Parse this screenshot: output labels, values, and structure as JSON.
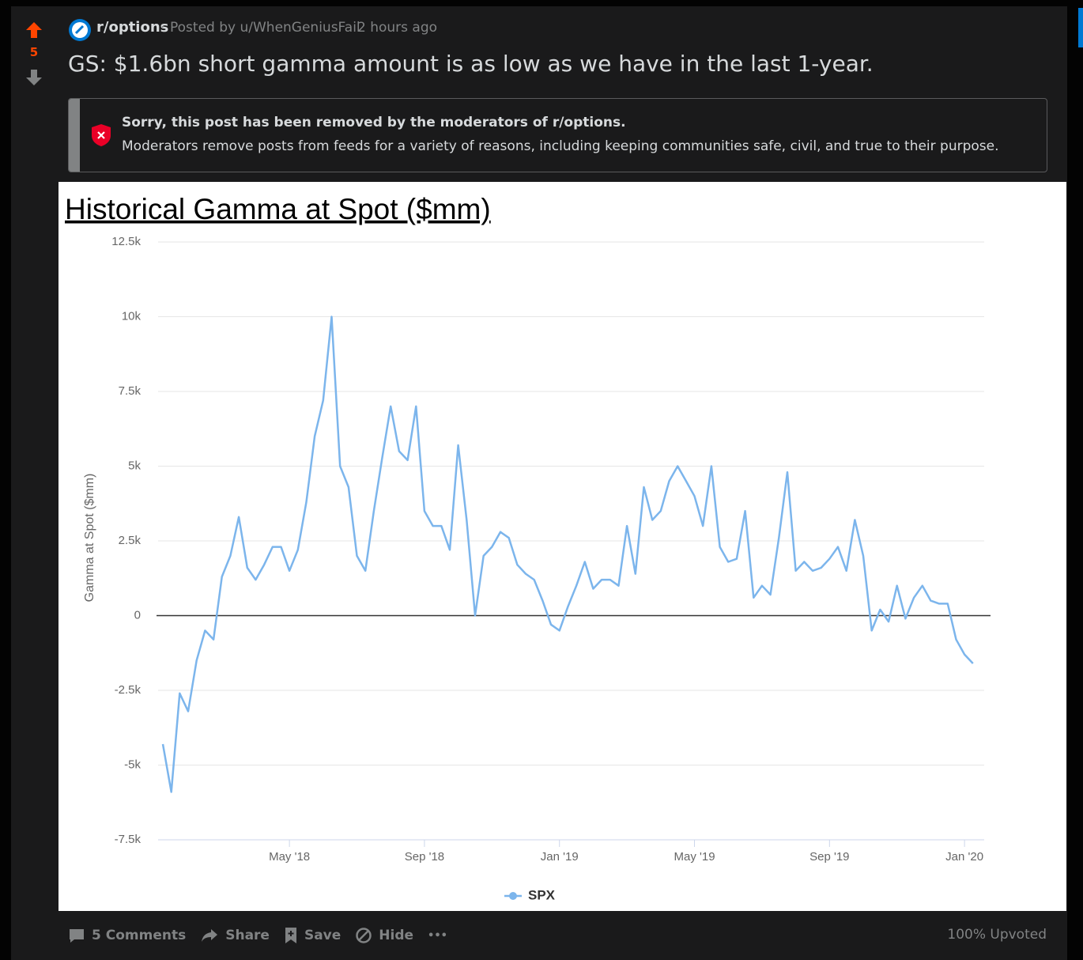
{
  "post": {
    "votes": "5",
    "subreddit": "r/options",
    "separator": "·",
    "posted_by": "Posted by u/WhenGeniusFail",
    "time": "2 hours ago",
    "title": "GS: $1.6bn short gamma amount is as low as we have in the last 1-year.",
    "removal_title": "Sorry, this post has been removed by the moderators of r/options.",
    "removal_text": "Moderators remove posts from feeds for a variety of reasons, including keeping communities safe, civil, and true to their purpose.",
    "actions": [
      "5 Comments",
      "Share",
      "Save",
      "Hide"
    ],
    "more": "•••",
    "upvoted": "100% Upvoted"
  },
  "chart_data": {
    "type": "line",
    "title": "Historical Gamma at Spot ($mm)",
    "y_label": "Gamma at Spot ($mm)",
    "categories": [
      null,
      null,
      null,
      null,
      null,
      null,
      null,
      null,
      null,
      null,
      null,
      null,
      null,
      null,
      null,
      "May '18",
      null,
      null,
      null,
      null,
      null,
      null,
      null,
      null,
      null,
      null,
      null,
      null,
      null,
      null,
      null,
      "Sep '18",
      null,
      null,
      null,
      null,
      null,
      null,
      null,
      null,
      null,
      null,
      null,
      null,
      null,
      null,
      null,
      "Jan '19",
      null,
      null,
      null,
      null,
      null,
      null,
      null,
      null,
      null,
      null,
      null,
      null,
      null,
      null,
      null,
      "May '19",
      null,
      null,
      null,
      null,
      null,
      null,
      null,
      null,
      null,
      null,
      null,
      null,
      null,
      null,
      null,
      "Sep '19",
      null,
      null,
      null,
      null,
      null,
      null,
      null,
      null,
      null,
      null,
      null,
      null,
      null,
      null,
      null,
      "Jan '20",
      null
    ],
    "series": [
      {
        "name": "SPX",
        "color": "#7cb5ec",
        "values": [
          -4300,
          -5900,
          -2600,
          -3200,
          -1500,
          -500,
          -800,
          1300,
          2000,
          3300,
          1600,
          1200,
          1700,
          2300,
          2300,
          1500,
          2200,
          3800,
          6000,
          7200,
          10000,
          5000,
          4300,
          2000,
          1500,
          3500,
          5300,
          7000,
          5500,
          5200,
          7000,
          3500,
          3000,
          3000,
          2200,
          5700,
          3200,
          0,
          2000,
          2300,
          2800,
          2600,
          1700,
          1400,
          1200,
          500,
          -300,
          -500,
          300,
          1000,
          1800,
          900,
          1200,
          1200,
          1000,
          3000,
          1400,
          4300,
          3200,
          3500,
          4500,
          5000,
          4500,
          4000,
          3000,
          5000,
          2300,
          1800,
          1900,
          3500,
          600,
          1000,
          700,
          2600,
          4800,
          1500,
          1800,
          1500,
          1600,
          1900,
          2300,
          1500,
          3200,
          2000,
          -500,
          200,
          -200,
          1000,
          -100,
          600,
          1000,
          500,
          400,
          400,
          -800,
          -1300,
          -1600
        ]
      }
    ],
    "ylim": [
      -7500,
      12500
    ],
    "yticks": [
      {
        "value": -7500,
        "label": "-7.5k"
      },
      {
        "value": -5000,
        "label": "-5k"
      },
      {
        "value": -2500,
        "label": "-2.5k"
      },
      0,
      {
        "value": 2500,
        "label": "2.5k"
      },
      {
        "value": 5000,
        "label": "5k"
      },
      {
        "value": 7500,
        "label": "7.5k"
      },
      {
        "value": 10000,
        "label": "10k"
      },
      {
        "value": 12500,
        "label": "12.5k"
      }
    ],
    "grid": true,
    "legend": "bottom"
  }
}
